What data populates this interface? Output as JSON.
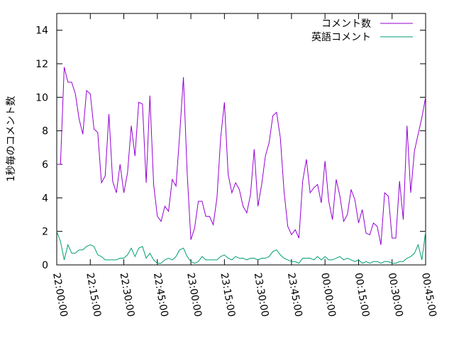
{
  "chart_data": {
    "type": "line",
    "title": "",
    "xlabel": "",
    "ylabel": "1秒毎のコメント数",
    "ylim": [
      0,
      15
    ],
    "yticks": [
      "0",
      "2",
      "4",
      "6",
      "8",
      "10",
      "12",
      "14"
    ],
    "xlim": [
      "22:00:00",
      "00:45:00"
    ],
    "xticks": [
      "22:00:00",
      "22:15:00",
      "22:30:00",
      "22:45:00",
      "23:00:00",
      "23:15:00",
      "23:30:00",
      "23:45:00",
      "00:00:00",
      "00:15:00",
      "00:30:00",
      "00:45:00"
    ],
    "grid": false,
    "legend_position": "top-right",
    "series": [
      {
        "name": "コメント数",
        "color": "#9400d3",
        "values": [
          6.0,
          6.0,
          11.8,
          10.9,
          10.9,
          10.2,
          8.7,
          7.8,
          10.4,
          10.2,
          8.1,
          7.9,
          4.9,
          5.3,
          9.0,
          5.0,
          4.3,
          6.0,
          4.3,
          5.5,
          8.3,
          6.5,
          9.7,
          9.6,
          4.9,
          10.1,
          4.8,
          2.9,
          2.6,
          3.5,
          3.2,
          5.1,
          4.7,
          7.8,
          11.2,
          5.5,
          1.5,
          2.2,
          3.8,
          3.8,
          2.9,
          2.9,
          2.4,
          4.0,
          7.6,
          9.7,
          5.4,
          4.3,
          4.9,
          4.5,
          3.5,
          3.1,
          4.2,
          6.9,
          3.5,
          4.8,
          6.5,
          7.3,
          8.9,
          9.1,
          7.6,
          4.4,
          2.3,
          1.8,
          2.1,
          1.6,
          5.0,
          6.3,
          4.3,
          4.6,
          4.8,
          3.7,
          6.2,
          3.8,
          2.7,
          5.1,
          4.1,
          2.6,
          3.0,
          4.5,
          3.9,
          2.5,
          3.3,
          1.9,
          1.8,
          2.5,
          2.3,
          1.2,
          4.3,
          4.1,
          1.6,
          1.6,
          5.0,
          2.7,
          8.3,
          4.3,
          6.8,
          7.8,
          8.8,
          10.0
        ]
      },
      {
        "name": "英語コメント",
        "color": "#009e73",
        "values": [
          2.0,
          1.4,
          0.3,
          1.2,
          0.7,
          0.7,
          0.9,
          0.9,
          1.1,
          1.2,
          1.1,
          0.6,
          0.5,
          0.3,
          0.3,
          0.3,
          0.3,
          0.4,
          0.4,
          0.6,
          1.0,
          0.5,
          1.0,
          1.1,
          0.4,
          0.7,
          0.3,
          0.1,
          0.1,
          0.3,
          0.4,
          0.3,
          0.5,
          0.9,
          1.0,
          0.5,
          0.2,
          0.1,
          0.2,
          0.5,
          0.3,
          0.3,
          0.3,
          0.3,
          0.5,
          0.6,
          0.4,
          0.3,
          0.5,
          0.4,
          0.4,
          0.3,
          0.4,
          0.4,
          0.3,
          0.4,
          0.4,
          0.5,
          0.8,
          0.9,
          0.6,
          0.4,
          0.3,
          0.2,
          0.2,
          0.1,
          0.4,
          0.4,
          0.4,
          0.3,
          0.5,
          0.3,
          0.5,
          0.3,
          0.3,
          0.4,
          0.5,
          0.3,
          0.4,
          0.3,
          0.2,
          0.3,
          0.1,
          0.2,
          0.1,
          0.2,
          0.2,
          0.1,
          0.2,
          0.2,
          0.1,
          0.1,
          0.2,
          0.2,
          0.4,
          0.5,
          0.7,
          1.2,
          0.3,
          2.0
        ]
      }
    ]
  }
}
